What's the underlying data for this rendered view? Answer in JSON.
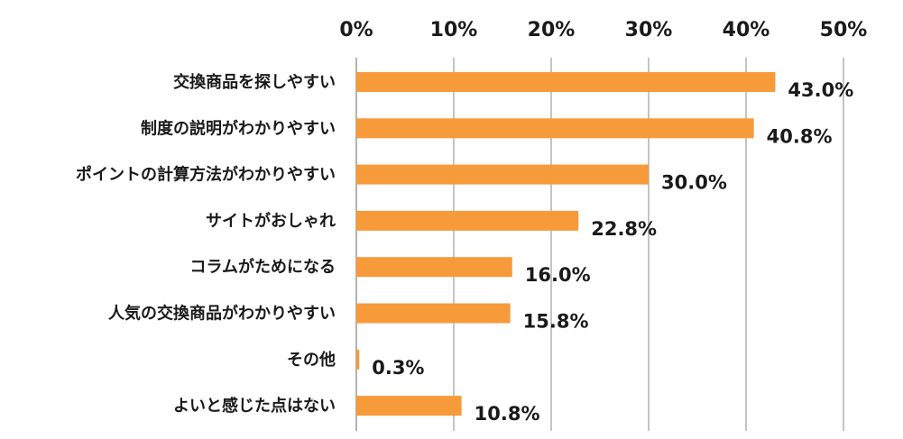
{
  "chart_data": {
    "type": "bar",
    "orientation": "horizontal",
    "categories": [
      "交換商品を探しやすい",
      "制度の説明がわかりやすい",
      "ポイントの計算方法がわかりやすい",
      "サイトがおしゃれ",
      "コラムがためになる",
      "人気の交換商品がわかりやすい",
      "その他",
      "よいと感じた点はない"
    ],
    "values": [
      43.0,
      40.8,
      30.0,
      22.8,
      16.0,
      15.8,
      0.3,
      10.8
    ],
    "data_labels": [
      "43.0%",
      "40.8%",
      "30.0%",
      "22.8%",
      "16.0%",
      "15.8%",
      "0.3%",
      "10.8%"
    ],
    "xlim": [
      0,
      50
    ],
    "x_ticks": [
      0,
      10,
      20,
      30,
      40,
      50
    ],
    "x_tick_labels": [
      "0%",
      "10%",
      "20%",
      "30%",
      "40%",
      "50%"
    ],
    "x_axis_position": "top",
    "grid": true,
    "legend": "none",
    "bar_color": "#f79a3a",
    "grid_color": "#9e9e9e",
    "title": "",
    "xlabel": "",
    "ylabel": ""
  }
}
